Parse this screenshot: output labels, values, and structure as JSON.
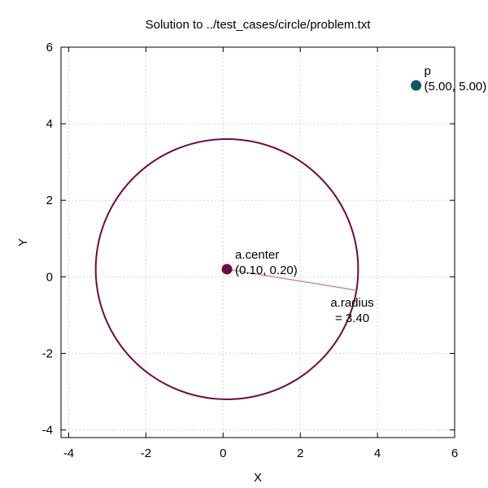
{
  "chart_data": {
    "type": "scatter",
    "title": "Solution to ../test_cases/circle/problem.txt",
    "xlabel": "X",
    "ylabel": "Y",
    "xlim": [
      -4.2,
      6
    ],
    "ylim": [
      -4.2,
      6
    ],
    "xticks": [
      -4,
      -2,
      0,
      2,
      4,
      6
    ],
    "yticks": [
      -4,
      -2,
      0,
      2,
      4,
      6
    ],
    "xtick_labels": [
      "-4",
      "-2",
      "0",
      "2",
      "4",
      "6"
    ],
    "ytick_labels": [
      "-4",
      "-2",
      "0",
      "2",
      "4",
      "6"
    ],
    "grid": true,
    "circle": {
      "cx": 0.1,
      "cy": 0.2,
      "r": 3.4,
      "color": "#6b0b45"
    },
    "radius_line": {
      "from": [
        0.1,
        0.2
      ],
      "to": [
        3.45,
        -0.35
      ],
      "color": "#c8909f"
    },
    "points": [
      {
        "x": 0.1,
        "y": 0.2,
        "color": "#6b0b45",
        "label": "a.center",
        "coord_label": "(0.10, 0.20)"
      },
      {
        "x": 5.0,
        "y": 5.0,
        "color": "#0b5566",
        "label": "p",
        "coord_label": "(5.00, 5.00)"
      }
    ],
    "radius_label": [
      "a.radius",
      "= 3.40"
    ]
  }
}
